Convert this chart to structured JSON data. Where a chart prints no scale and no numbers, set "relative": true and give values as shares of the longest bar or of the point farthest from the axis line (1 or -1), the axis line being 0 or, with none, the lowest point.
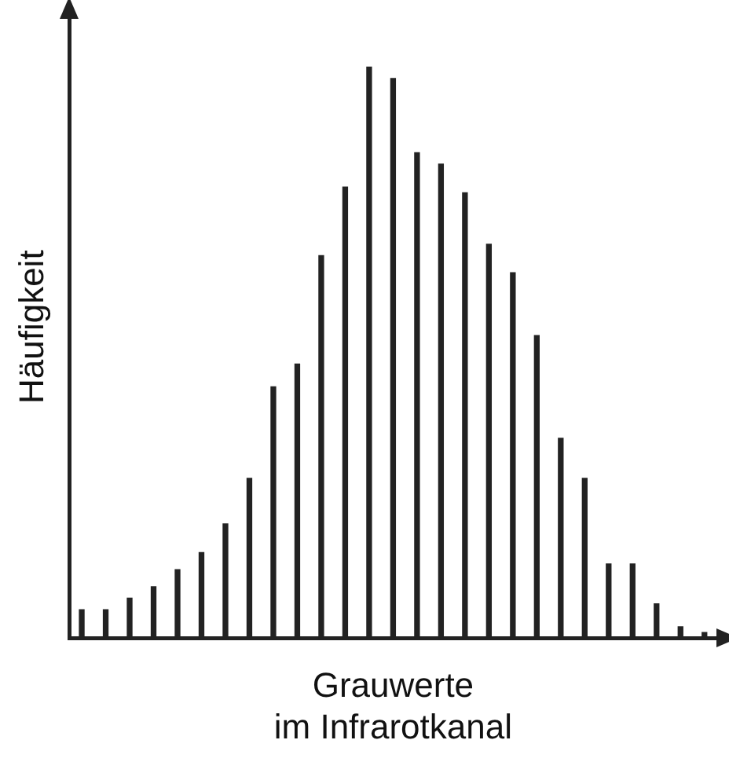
{
  "chart_data": {
    "type": "bar",
    "relative": true,
    "xlabel": "Grauwerte\nim Infrarotkanal",
    "ylabel": "Häufigkeit",
    "color": "#222222",
    "categories": [
      null,
      null,
      null,
      null,
      null,
      null,
      null,
      null,
      null,
      null,
      null,
      null,
      null,
      null,
      null,
      null,
      null,
      null,
      null,
      null,
      null,
      null,
      null,
      null,
      null,
      null,
      null
    ],
    "values": [
      0.05,
      0.05,
      0.07,
      0.09,
      0.12,
      0.15,
      0.2,
      0.28,
      0.44,
      0.48,
      0.67,
      0.79,
      1,
      0.98,
      0.85,
      0.83,
      0.78,
      0.69,
      0.64,
      0.53,
      0.35,
      0.28,
      0.13,
      0.13,
      0.06,
      0.02,
      0.01
    ],
    "grid": false,
    "legend": false
  }
}
